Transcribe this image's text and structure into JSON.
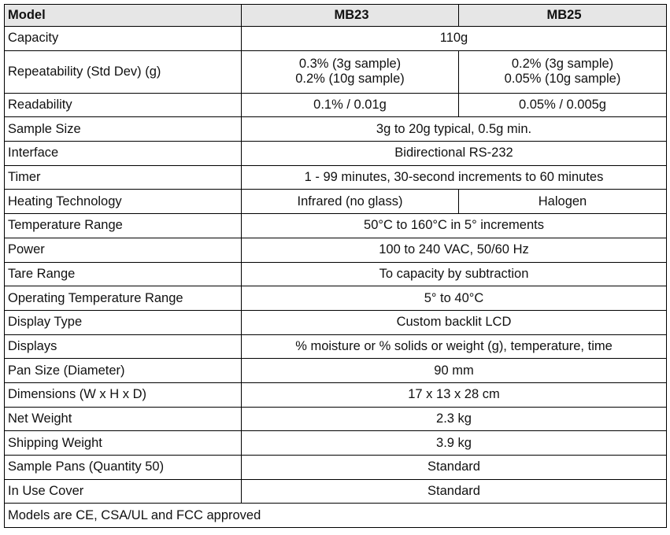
{
  "header": {
    "model_label": "Model",
    "col_a": "MB23",
    "col_b": "MB25"
  },
  "rows": {
    "capacity": {
      "label": "Capacity",
      "value": "110g"
    },
    "repeatability": {
      "label": "Repeatability  (Std Dev) (g)",
      "a_line1": "0.3% (3g sample)",
      "a_line2": "0.2% (10g sample)",
      "b_line1": "0.2% (3g sample)",
      "b_line2": "0.05% (10g sample)"
    },
    "readability": {
      "label": "Readability",
      "a": "0.1% / 0.01g",
      "b": "0.05% / 0.005g"
    },
    "sample_size": {
      "label": "Sample Size",
      "value": "3g to 20g typical, 0.5g min."
    },
    "interface": {
      "label": "Interface",
      "value": "Bidirectional RS-232"
    },
    "timer": {
      "label": "Timer",
      "value": "1 - 99 minutes, 30-second increments to 60 minutes"
    },
    "heating": {
      "label": "Heating Technology",
      "a": "Infrared (no glass)",
      "b": "Halogen"
    },
    "temp_range": {
      "label": "Temperature Range",
      "value": "50°C to 160°C in 5° increments"
    },
    "power": {
      "label": "Power",
      "value": "100 to 240 VAC, 50/60 Hz"
    },
    "tare_range": {
      "label": "Tare Range",
      "value": "To capacity by subtraction"
    },
    "op_temp": {
      "label": "Operating Temperature Range",
      "value": "5° to 40°C"
    },
    "display_type": {
      "label": "Display Type",
      "value": "Custom backlit LCD"
    },
    "displays": {
      "label": "Displays",
      "value": "% moisture or % solids or weight (g), temperature, time"
    },
    "pan_size": {
      "label": "Pan Size (Diameter)",
      "value": "90 mm"
    },
    "dimensions": {
      "label": "Dimensions (W x H x D)",
      "value": "17 x 13 x 28 cm"
    },
    "net_weight": {
      "label": "Net Weight",
      "value": "2.3 kg"
    },
    "shipping_weight": {
      "label": "Shipping Weight",
      "value": "3.9 kg"
    },
    "sample_pans": {
      "label": "Sample Pans (Quantity 50)",
      "value": "Standard"
    },
    "in_use_cover": {
      "label": "In Use Cover",
      "value": "Standard"
    }
  },
  "footer": {
    "note": "Models are CE, CSA/UL and FCC approved"
  }
}
